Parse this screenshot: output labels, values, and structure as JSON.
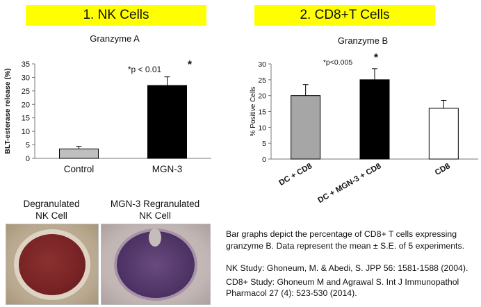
{
  "headers": {
    "left": "1. NK Cells",
    "right": "2. CD8+T Cells"
  },
  "chart_data": [
    {
      "type": "bar",
      "title": "Granzyme A",
      "xlabel": "",
      "ylabel": "BLT-esterase release (%)",
      "ylim": [
        0,
        35
      ],
      "yticks": [
        "0",
        "5",
        "10",
        "15",
        "20",
        "25",
        "30",
        "35"
      ],
      "categories": [
        "Control",
        "MGN-3"
      ],
      "values": [
        3.5,
        27
      ],
      "errors": [
        1.0,
        3.2
      ],
      "colors": [
        "#bfbfbf",
        "#000000"
      ],
      "annotation": "*p < 0.01",
      "star": "*",
      "legend": "none",
      "grid": false
    },
    {
      "type": "bar",
      "title": "Granzyme B",
      "xlabel": "",
      "ylabel": "% Positive Cells",
      "ylim": [
        0,
        30
      ],
      "yticks": [
        "0",
        "5",
        "10",
        "15",
        "20",
        "25",
        "30"
      ],
      "categories": [
        "DC + CD8",
        "DC + MGN-3 + CD8",
        "CD8"
      ],
      "values": [
        20,
        25,
        16
      ],
      "errors": [
        3.5,
        3.5,
        2.5
      ],
      "colors": [
        "#a6a6a6",
        "#000000",
        "#ffffff"
      ],
      "annotation": "*p<0.005",
      "star": "*",
      "legend": "none",
      "grid": false
    }
  ],
  "photos": {
    "left_caption_1": "Degranulated",
    "left_caption_2": "NK Cell",
    "right_caption_1": "MGN-3 Regranulated",
    "right_caption_2": "NK Cell"
  },
  "text": {
    "description": "Bar graphs depict the percentage of CD8+ T cells expressing granzyme B. Data represent the mean ± S.E. of 5 experiments.",
    "ref1": "NK Study: Ghoneum, M. & Abedi, S. JPP 56: 1581-1588 (2004).",
    "ref2": "CD8+ Study: Ghoneum  M and Agrawal S. Int J Immunopathol Pharmacol 27 (4): 523-530 (2014)."
  }
}
